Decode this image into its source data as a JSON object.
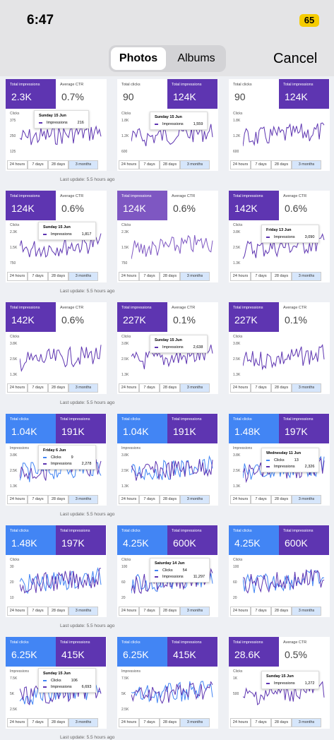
{
  "status_bar": {
    "time": "6:47",
    "battery": "65"
  },
  "header": {
    "segments": [
      "Photos",
      "Albums"
    ],
    "selected": 0,
    "cancel": "Cancel"
  },
  "range_buttons": [
    "24 hours",
    "7 days",
    "28 days",
    "3 months"
  ],
  "range_selected": 3,
  "footer": "Last update: 5.5 hours ago",
  "tiles": [
    {
      "metrics": [
        {
          "label": "Total impressions",
          "value": "2.3K",
          "color": "#5e35b1"
        },
        {
          "label": "Average CTR",
          "value": "0.7%",
          "color": null
        }
      ],
      "tooltip": {
        "date": "Sunday 15 Jun",
        "rows": [
          {
            "label": "Impressions",
            "value": "216",
            "color": "#5e35b1"
          }
        ]
      },
      "axis_title": "Clicks",
      "axis": [
        "375",
        "250",
        "125"
      ]
    },
    {
      "metrics": [
        {
          "label": "Total clicks",
          "value": "90",
          "color": null
        },
        {
          "label": "Total impressions",
          "value": "124K",
          "color": "#5e35b1"
        }
      ],
      "tooltip": {
        "date": "Sunday 15 Jun",
        "rows": [
          {
            "label": "Impressions",
            "value": "1,559",
            "color": "#5e35b1"
          }
        ]
      },
      "axis_title": "Clicks",
      "axis": [
        "1.8K",
        "1.2K",
        "600"
      ]
    },
    {
      "metrics": [
        {
          "label": "Total clicks",
          "value": "90",
          "color": null
        },
        {
          "label": "Total impressions",
          "value": "124K",
          "color": "#5e35b1"
        }
      ],
      "tooltip": null,
      "axis_title": "Clicks",
      "axis": [
        "1.8K",
        "1.2K",
        "600"
      ]
    },
    {
      "metrics": [
        {
          "label": "Total impressions",
          "value": "124K",
          "color": "#5e35b1"
        },
        {
          "label": "Average CTR",
          "value": "0.6%",
          "color": null
        }
      ],
      "tooltip": {
        "date": "Sunday 15 Jun",
        "rows": [
          {
            "label": "Impressions",
            "value": "1,817",
            "color": "#5e35b1"
          }
        ]
      },
      "axis_title": "Clicks",
      "axis": [
        "2.3K",
        "1.5K",
        "750"
      ]
    },
    {
      "metrics": [
        {
          "label": "Total impressions",
          "value": "124K",
          "color": "#7e57c2"
        },
        {
          "label": "Average CTR",
          "value": "0.6%",
          "color": null
        }
      ],
      "tooltip": null,
      "axis_title": "Clicks",
      "axis": [
        "2.3K",
        "1.5K",
        "750"
      ]
    },
    {
      "metrics": [
        {
          "label": "Total impressions",
          "value": "142K",
          "color": "#5e35b1"
        },
        {
          "label": "Average CTR",
          "value": "0.6%",
          "color": null
        }
      ],
      "tooltip": {
        "date": "Friday 13 Jun",
        "rows": [
          {
            "label": "Impressions",
            "value": "3,090",
            "color": "#5e35b1"
          }
        ]
      },
      "axis_title": "Clicks",
      "axis": [
        "3.8K",
        "2.5K",
        "1.3K"
      ]
    },
    {
      "metrics": [
        {
          "label": "Total impressions",
          "value": "142K",
          "color": "#5e35b1"
        },
        {
          "label": "Average CTR",
          "value": "0.6%",
          "color": null
        }
      ],
      "tooltip": null,
      "axis_title": "Clicks",
      "axis": [
        "3.8K",
        "2.5K",
        "1.3K"
      ]
    },
    {
      "metrics": [
        {
          "label": "Total impressions",
          "value": "227K",
          "color": "#5e35b1"
        },
        {
          "label": "Average CTR",
          "value": "0.1%",
          "color": null
        }
      ],
      "tooltip": {
        "date": "Sunday 15 Jun",
        "rows": [
          {
            "label": "Impressions",
            "value": "2,638",
            "color": "#5e35b1"
          }
        ]
      },
      "axis_title": "Clicks",
      "axis": [
        "3.8K",
        "2.5K",
        "1.3K"
      ]
    },
    {
      "metrics": [
        {
          "label": "Total impressions",
          "value": "227K",
          "color": "#5e35b1"
        },
        {
          "label": "Average CTR",
          "value": "0.1%",
          "color": null
        }
      ],
      "tooltip": null,
      "axis_title": "Clicks",
      "axis": [
        "3.8K",
        "2.5K",
        "1.3K"
      ]
    },
    {
      "metrics": [
        {
          "label": "Total clicks",
          "value": "1.04K",
          "color": "#4285f4"
        },
        {
          "label": "Total impressions",
          "value": "191K",
          "color": "#5e35b1"
        }
      ],
      "tooltip": {
        "date": "Friday 6 Jun",
        "rows": [
          {
            "label": "Clicks",
            "value": "9",
            "color": "#4285f4"
          },
          {
            "label": "Impressions",
            "value": "2,278",
            "color": "#5e35b1"
          }
        ]
      },
      "axis_title": "Impressions",
      "axis": [
        "3.8K",
        "2.5K",
        "1.3K"
      ]
    },
    {
      "metrics": [
        {
          "label": "Total clicks",
          "value": "1.04K",
          "color": "#4285f4"
        },
        {
          "label": "Total impressions",
          "value": "191K",
          "color": "#5e35b1"
        }
      ],
      "tooltip": null,
      "axis_title": "Impressions",
      "axis": [
        "3.8K",
        "2.5K",
        "1.3K"
      ]
    },
    {
      "metrics": [
        {
          "label": "Total clicks",
          "value": "1.48K",
          "color": "#4285f4"
        },
        {
          "label": "Total impressions",
          "value": "197K",
          "color": "#5e35b1"
        }
      ],
      "tooltip": {
        "date": "Wednesday 11 Jun",
        "rows": [
          {
            "label": "Clicks",
            "value": "13",
            "color": "#4285f4"
          },
          {
            "label": "Impressions",
            "value": "2,326",
            "color": "#5e35b1"
          }
        ]
      },
      "axis_title": "Impressions",
      "axis": [
        "3.8K",
        "2.5K",
        "1.3K"
      ]
    },
    {
      "metrics": [
        {
          "label": "Total clicks",
          "value": "1.48K",
          "color": "#4285f4"
        },
        {
          "label": "Total impressions",
          "value": "197K",
          "color": "#5e35b1"
        }
      ],
      "tooltip": null,
      "axis_title": "Clicks",
      "axis": [
        "30",
        "20",
        "10"
      ]
    },
    {
      "metrics": [
        {
          "label": "Total clicks",
          "value": "4.25K",
          "color": "#4285f4"
        },
        {
          "label": "Total impressions",
          "value": "600K",
          "color": "#5e35b1"
        }
      ],
      "tooltip": {
        "date": "Saturday 14 Jun",
        "rows": [
          {
            "label": "Clicks",
            "value": "54",
            "color": "#4285f4"
          },
          {
            "label": "Impressions",
            "value": "11,297",
            "color": "#5e35b1"
          }
        ]
      },
      "axis_title": "Clicks",
      "axis": [
        "100",
        "60",
        "20"
      ]
    },
    {
      "metrics": [
        {
          "label": "Total clicks",
          "value": "4.25K",
          "color": "#4285f4"
        },
        {
          "label": "Total impressions",
          "value": "600K",
          "color": "#5e35b1"
        }
      ],
      "tooltip": null,
      "axis_title": "Clicks",
      "axis": [
        "100",
        "60",
        "20"
      ]
    },
    {
      "metrics": [
        {
          "label": "Total clicks",
          "value": "6.25K",
          "color": "#4285f4"
        },
        {
          "label": "Total impressions",
          "value": "415K",
          "color": "#5e35b1"
        }
      ],
      "tooltip": {
        "date": "Sunday 15 Jun",
        "rows": [
          {
            "label": "Clicks",
            "value": "106",
            "color": "#4285f4"
          },
          {
            "label": "Impressions",
            "value": "6,693",
            "color": "#5e35b1"
          }
        ]
      },
      "axis_title": "Impressions",
      "axis": [
        "7.5K",
        "5K",
        "2.5K"
      ]
    },
    {
      "metrics": [
        {
          "label": "Total clicks",
          "value": "6.25K",
          "color": "#4285f4"
        },
        {
          "label": "Total impressions",
          "value": "415K",
          "color": "#5e35b1"
        }
      ],
      "tooltip": null,
      "axis_title": "Impressions",
      "axis": [
        "7.5K",
        "5K",
        "2.5K"
      ]
    },
    {
      "metrics": [
        {
          "label": "Total impressions",
          "value": "28.6K",
          "color": "#5e35b1"
        },
        {
          "label": "Average CTR",
          "value": "0.5%",
          "color": null
        }
      ],
      "tooltip": {
        "date": "Sunday 15 Jun",
        "rows": [
          {
            "label": "Impressions",
            "value": "1,272",
            "color": "#5e35b1"
          }
        ]
      },
      "axis_title": "Clicks",
      "axis": [
        "1K",
        "500"
      ]
    }
  ]
}
